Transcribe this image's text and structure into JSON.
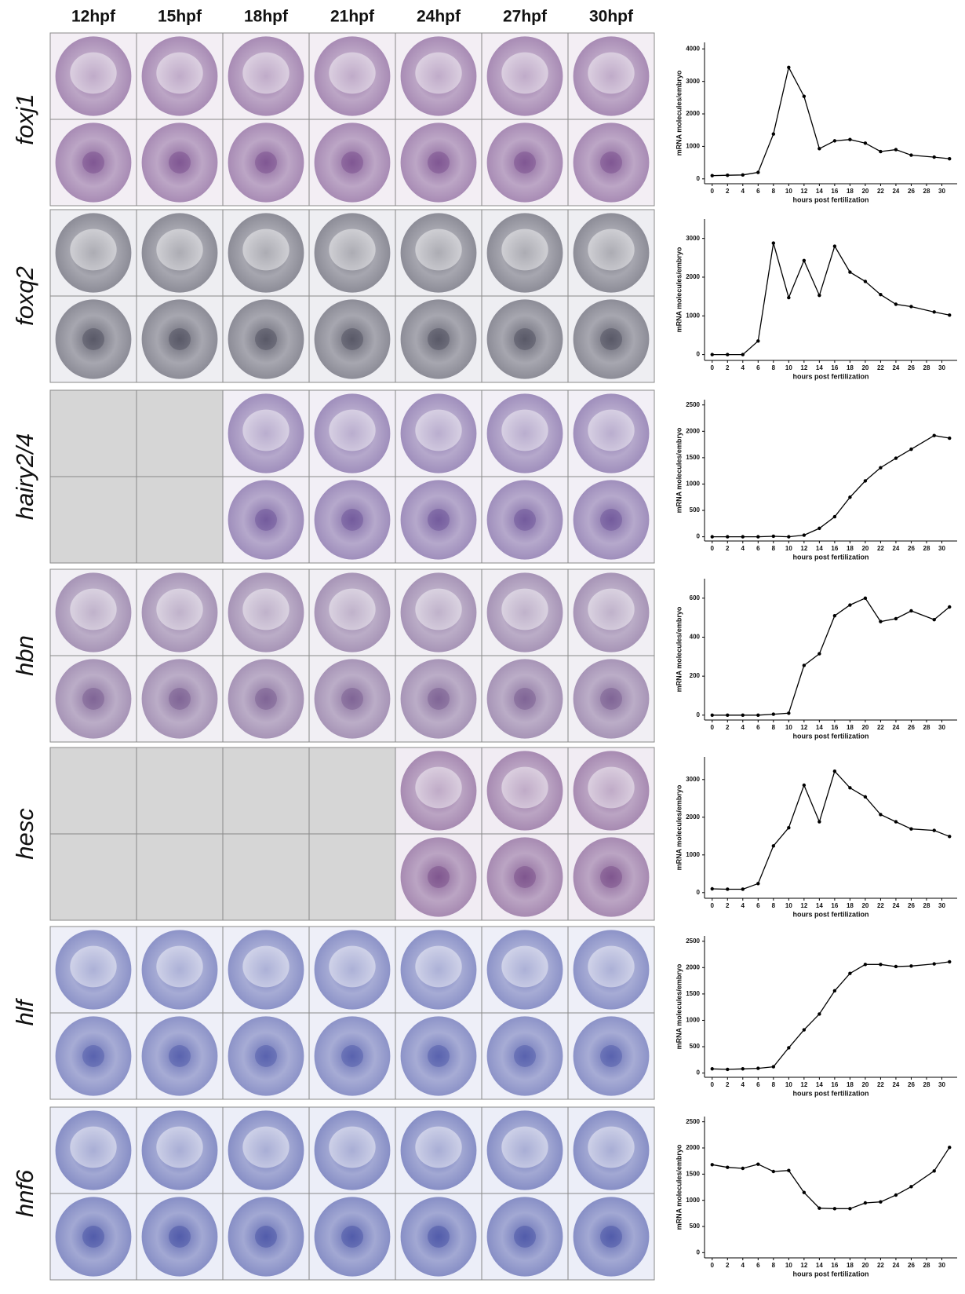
{
  "figure": {
    "columns": [
      "12hpf",
      "15hpf",
      "18hpf",
      "21hpf",
      "24hpf",
      "27hpf",
      "30hpf"
    ],
    "genes": [
      "foxj1",
      "foxq2",
      "hairy2/4",
      "hbn",
      "hesc",
      "hlf",
      "hnf6"
    ]
  },
  "chart_data": [
    {
      "type": "line",
      "xlabel": "hours post fertilization",
      "ylabel": "mRNA molecules/embryo",
      "color": "#000000",
      "x": [
        0,
        2,
        4,
        6,
        8,
        10,
        12,
        14,
        16,
        18,
        20,
        22,
        24,
        26,
        29,
        31
      ],
      "values": [
        100,
        110,
        120,
        200,
        1380,
        3430,
        2540,
        930,
        1170,
        1210,
        1100,
        840,
        900,
        730,
        670,
        620
      ],
      "xlim": [
        -1,
        32
      ],
      "xticks": [
        0,
        2,
        4,
        6,
        8,
        10,
        12,
        14,
        16,
        18,
        20,
        22,
        24,
        26,
        28,
        30
      ],
      "ylim": [
        -150,
        4200
      ],
      "yticks": [
        0,
        1000,
        2000,
        3000,
        4000
      ]
    },
    {
      "type": "line",
      "xlabel": "hours post fertilization",
      "ylabel": "mRNA molecules/embryo",
      "color": "#000000",
      "x": [
        0,
        2,
        4,
        6,
        8,
        10,
        12,
        14,
        16,
        18,
        20,
        22,
        24,
        26,
        29,
        31
      ],
      "values": [
        0,
        0,
        0,
        350,
        2880,
        1470,
        2430,
        1530,
        2800,
        2130,
        1890,
        1550,
        1300,
        1240,
        1100,
        1020
      ],
      "xlim": [
        -1,
        32
      ],
      "xticks": [
        0,
        2,
        4,
        6,
        8,
        10,
        12,
        14,
        16,
        18,
        20,
        22,
        24,
        26,
        28,
        30
      ],
      "ylim": [
        -150,
        3500
      ],
      "yticks": [
        0,
        1000,
        2000,
        3000
      ]
    },
    {
      "type": "line",
      "xlabel": "hours post fertilization",
      "ylabel": "mRNA molecules/embryo",
      "color": "#000000",
      "x": [
        0,
        2,
        4,
        6,
        8,
        10,
        12,
        14,
        16,
        18,
        20,
        22,
        24,
        26,
        29,
        31
      ],
      "values": [
        0,
        0,
        0,
        0,
        10,
        0,
        30,
        160,
        380,
        750,
        1060,
        1310,
        1490,
        1660,
        1920,
        1870
      ],
      "xlim": [
        -1,
        32
      ],
      "xticks": [
        0,
        2,
        4,
        6,
        8,
        10,
        12,
        14,
        16,
        18,
        20,
        22,
        24,
        26,
        28,
        30
      ],
      "ylim": [
        -80,
        2600
      ],
      "yticks": [
        0,
        500,
        1000,
        1500,
        2000,
        2500
      ]
    },
    {
      "type": "line",
      "xlabel": "hours post fertilization",
      "ylabel": "mRNA molecules/embryo",
      "color": "#000000",
      "x": [
        0,
        2,
        4,
        6,
        8,
        10,
        12,
        14,
        16,
        18,
        20,
        22,
        24,
        26,
        29,
        31
      ],
      "values": [
        0,
        0,
        0,
        0,
        5,
        10,
        255,
        315,
        510,
        565,
        600,
        480,
        495,
        535,
        490,
        555
      ],
      "xlim": [
        -1,
        32
      ],
      "xticks": [
        0,
        2,
        4,
        6,
        8,
        10,
        12,
        14,
        16,
        18,
        20,
        22,
        24,
        26,
        28,
        30
      ],
      "ylim": [
        -25,
        700
      ],
      "yticks": [
        0,
        200,
        400,
        600
      ]
    },
    {
      "type": "line",
      "xlabel": "hours post fertilization",
      "ylabel": "mRNA molecules/embryo",
      "color": "#000000",
      "x": [
        0,
        2,
        4,
        6,
        8,
        10,
        12,
        14,
        16,
        18,
        20,
        22,
        24,
        26,
        29,
        31
      ],
      "values": [
        100,
        90,
        90,
        240,
        1240,
        1720,
        2850,
        1880,
        3220,
        2780,
        2540,
        2070,
        1880,
        1690,
        1650,
        1490
      ],
      "xlim": [
        -1,
        32
      ],
      "xticks": [
        0,
        2,
        4,
        6,
        8,
        10,
        12,
        14,
        16,
        18,
        20,
        22,
        24,
        26,
        28,
        30
      ],
      "ylim": [
        -150,
        3600
      ],
      "yticks": [
        0,
        1000,
        2000,
        3000
      ]
    },
    {
      "type": "line",
      "xlabel": "hours post fertilization",
      "ylabel": "mRNA molecules/embryo",
      "color": "#000000",
      "x": [
        0,
        2,
        4,
        6,
        8,
        10,
        12,
        14,
        16,
        18,
        20,
        22,
        24,
        26,
        29,
        31
      ],
      "values": [
        80,
        70,
        80,
        90,
        120,
        480,
        820,
        1120,
        1560,
        1890,
        2060,
        2060,
        2020,
        2030,
        2070,
        2110
      ],
      "xlim": [
        -1,
        32
      ],
      "xticks": [
        0,
        2,
        4,
        6,
        8,
        10,
        12,
        14,
        16,
        18,
        20,
        22,
        24,
        26,
        28,
        30
      ],
      "ylim": [
        -80,
        2600
      ],
      "yticks": [
        0,
        500,
        1000,
        1500,
        2000,
        2500
      ]
    },
    {
      "type": "line",
      "xlabel": "hours post fertilization",
      "ylabel": "mRNA molecules/embryo",
      "color": "#000000",
      "x": [
        0,
        2,
        4,
        6,
        8,
        10,
        12,
        14,
        16,
        18,
        20,
        22,
        24,
        26,
        29,
        31
      ],
      "values": [
        1680,
        1630,
        1610,
        1690,
        1550,
        1570,
        1150,
        850,
        840,
        840,
        950,
        970,
        1100,
        1260,
        1560,
        2010
      ],
      "xlim": [
        -1,
        32
      ],
      "xticks": [
        0,
        2,
        4,
        6,
        8,
        10,
        12,
        14,
        16,
        18,
        20,
        22,
        24,
        26,
        28,
        30
      ],
      "ylim": [
        -100,
        2600
      ],
      "yticks": [
        0,
        500,
        1000,
        1500,
        2000,
        2500
      ]
    }
  ]
}
